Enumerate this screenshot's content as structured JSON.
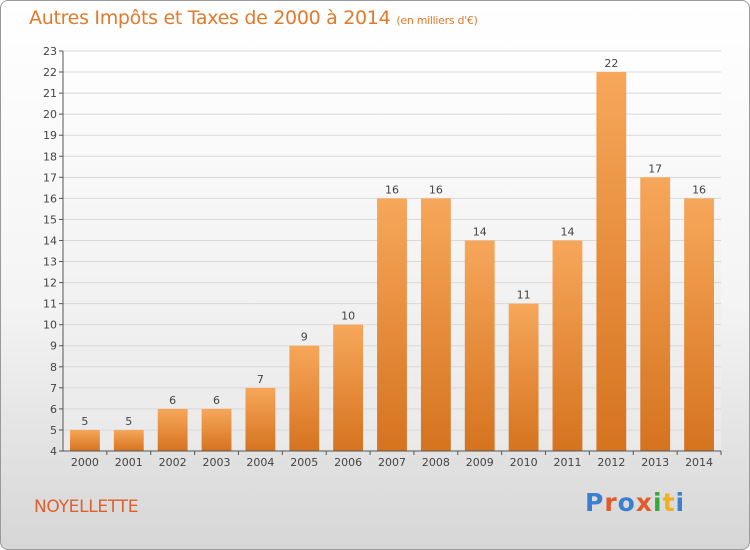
{
  "header": {
    "title": "Autres Impôts et Taxes de 2000 à 2014",
    "unit": "(en milliers d'€)"
  },
  "place": "NOYELLETTE",
  "logo": {
    "text": "Proxiti",
    "colors": [
      "#3a7fd0",
      "#e05a2a",
      "#3a7fd0",
      "#e05a2a",
      "#39a83a",
      "#f0b020",
      "#3a7fd0"
    ]
  },
  "chart_data": {
    "type": "bar",
    "categories": [
      "2000",
      "2001",
      "2002",
      "2003",
      "2004",
      "2005",
      "2006",
      "2007",
      "2008",
      "2009",
      "2010",
      "2011",
      "2012",
      "2013",
      "2014"
    ],
    "values": [
      5,
      5,
      6,
      6,
      7,
      9,
      10,
      16,
      16,
      14,
      11,
      14,
      22,
      17,
      16
    ],
    "title": "Autres Impôts et Taxes de 2000 à 2014",
    "subtitle": "(en milliers d'€)",
    "ylim": [
      4,
      23
    ],
    "yticks": [
      4,
      5,
      6,
      7,
      8,
      9,
      10,
      11,
      12,
      13,
      14,
      15,
      16,
      17,
      18,
      19,
      20,
      21,
      22,
      23
    ],
    "grid": true,
    "data_labels": true,
    "colors": {
      "bar_top": "#f7a75a",
      "bar_bottom": "#d5731f",
      "grid": "#d9d9d9",
      "axis": "#555555",
      "label": "#444444"
    }
  }
}
